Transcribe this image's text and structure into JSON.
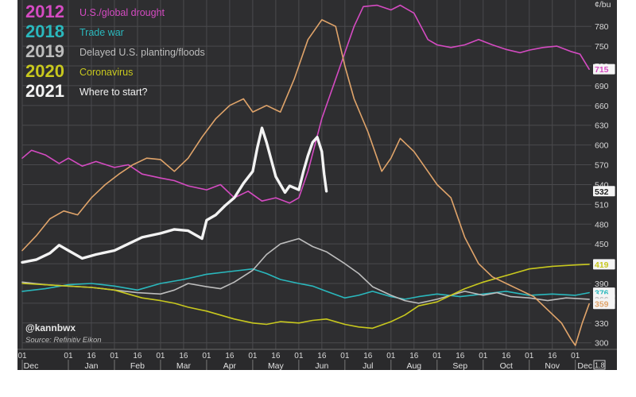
{
  "chart_data": {
    "type": "line",
    "title": "",
    "xlabel": "",
    "ylabel": "",
    "y_unit": "¢/bu",
    "ylim": [
      290,
      820
    ],
    "y_ticks": [
      300,
      330,
      360,
      390,
      420,
      450,
      480,
      510,
      540,
      570,
      600,
      630,
      660,
      690,
      720,
      750,
      780
    ],
    "grid": true,
    "legend_position": "top-left",
    "month_labels": [
      "Dec",
      "Jan",
      "Feb",
      "Mar",
      "Apr",
      "May",
      "Jun",
      "Jul",
      "Aug",
      "Sep",
      "Oct",
      "Nov",
      "Dec"
    ],
    "day_ticks": [
      {
        "m": 0,
        "d": 1
      },
      {
        "m": 1,
        "d": 1
      },
      {
        "m": 1,
        "d": 16
      },
      {
        "m": 2,
        "d": 1
      },
      {
        "m": 2,
        "d": 16
      },
      {
        "m": 3,
        "d": 1
      },
      {
        "m": 3,
        "d": 16
      },
      {
        "m": 4,
        "d": 1
      },
      {
        "m": 4,
        "d": 16
      },
      {
        "m": 5,
        "d": 1
      },
      {
        "m": 5,
        "d": 16
      },
      {
        "m": 6,
        "d": 1
      },
      {
        "m": 6,
        "d": 16
      },
      {
        "m": 7,
        "d": 1
      },
      {
        "m": 7,
        "d": 16
      },
      {
        "m": 8,
        "d": 1
      },
      {
        "m": 8,
        "d": 16
      },
      {
        "m": 9,
        "d": 1
      },
      {
        "m": 9,
        "d": 16
      },
      {
        "m": 10,
        "d": 1
      },
      {
        "m": 10,
        "d": 16
      },
      {
        "m": 11,
        "d": 1
      },
      {
        "m": 11,
        "d": 16
      },
      {
        "m": 12,
        "d": 1
      }
    ],
    "attribution": "@kannbwx",
    "source": "Source: Refinitiv Eikon",
    "corner_value": "1.8",
    "series": [
      {
        "year": "2012",
        "name": "U.S./global drought",
        "color": "#d54bc2",
        "end_label": "715",
        "end_m": 12.3,
        "points": [
          [
            0,
            580
          ],
          [
            0.2,
            592
          ],
          [
            0.5,
            585
          ],
          [
            0.8,
            572
          ],
          [
            1.0,
            580
          ],
          [
            1.3,
            568
          ],
          [
            1.6,
            575
          ],
          [
            2.0,
            566
          ],
          [
            2.3,
            570
          ],
          [
            2.6,
            556
          ],
          [
            3.0,
            550
          ],
          [
            3.3,
            546
          ],
          [
            3.6,
            538
          ],
          [
            4.0,
            532
          ],
          [
            4.3,
            540
          ],
          [
            4.6,
            520
          ],
          [
            4.9,
            530
          ],
          [
            5.2,
            515
          ],
          [
            5.5,
            520
          ],
          [
            5.8,
            512
          ],
          [
            6.0,
            520
          ],
          [
            6.2,
            560
          ],
          [
            6.5,
            640
          ],
          [
            6.8,
            700
          ],
          [
            7.0,
            740
          ],
          [
            7.2,
            780
          ],
          [
            7.4,
            810
          ],
          [
            7.7,
            812
          ],
          [
            8.0,
            805
          ],
          [
            8.2,
            812
          ],
          [
            8.5,
            800
          ],
          [
            8.8,
            760
          ],
          [
            9.0,
            752
          ],
          [
            9.3,
            748
          ],
          [
            9.6,
            752
          ],
          [
            9.9,
            760
          ],
          [
            10.2,
            752
          ],
          [
            10.5,
            745
          ],
          [
            10.8,
            740
          ],
          [
            11.0,
            744
          ],
          [
            11.3,
            748
          ],
          [
            11.6,
            750
          ],
          [
            11.9,
            742
          ],
          [
            12.1,
            738
          ],
          [
            12.3,
            715
          ]
        ]
      },
      {
        "year": "2018",
        "name": "Trade war",
        "color": "#2ab8bd",
        "end_label": "376",
        "end_m": 12.3,
        "points": [
          [
            0,
            378
          ],
          [
            0.5,
            382
          ],
          [
            1.0,
            388
          ],
          [
            1.5,
            390
          ],
          [
            2.0,
            386
          ],
          [
            2.5,
            380
          ],
          [
            3.0,
            390
          ],
          [
            3.5,
            396
          ],
          [
            4.0,
            404
          ],
          [
            4.5,
            408
          ],
          [
            5.0,
            412
          ],
          [
            5.3,
            405
          ],
          [
            5.6,
            396
          ],
          [
            6.0,
            390
          ],
          [
            6.3,
            386
          ],
          [
            6.6,
            378
          ],
          [
            7.0,
            368
          ],
          [
            7.3,
            372
          ],
          [
            7.6,
            378
          ],
          [
            8.0,
            370
          ],
          [
            8.3,
            366
          ],
          [
            8.6,
            370
          ],
          [
            9.0,
            374
          ],
          [
            9.5,
            370
          ],
          [
            10.0,
            374
          ],
          [
            10.5,
            378
          ],
          [
            11.0,
            372
          ],
          [
            11.5,
            374
          ],
          [
            12.0,
            372
          ],
          [
            12.3,
            376
          ]
        ]
      },
      {
        "year": "2019",
        "name": "Delayed U.S. planting/floods",
        "color": "#bdbdbd",
        "end_label": "366",
        "end_m": 12.3,
        "points": [
          [
            0,
            392
          ],
          [
            0.5,
            388
          ],
          [
            1.0,
            386
          ],
          [
            1.5,
            384
          ],
          [
            2.0,
            380
          ],
          [
            2.5,
            376
          ],
          [
            3.0,
            374
          ],
          [
            3.3,
            380
          ],
          [
            3.6,
            390
          ],
          [
            4.0,
            385
          ],
          [
            4.3,
            382
          ],
          [
            4.6,
            392
          ],
          [
            5.0,
            410
          ],
          [
            5.3,
            434
          ],
          [
            5.6,
            450
          ],
          [
            6.0,
            458
          ],
          [
            6.3,
            446
          ],
          [
            6.6,
            438
          ],
          [
            7.0,
            420
          ],
          [
            7.3,
            405
          ],
          [
            7.6,
            385
          ],
          [
            8.0,
            372
          ],
          [
            8.3,
            364
          ],
          [
            8.6,
            360
          ],
          [
            9.0,
            366
          ],
          [
            9.3,
            372
          ],
          [
            9.6,
            378
          ],
          [
            10.0,
            372
          ],
          [
            10.3,
            376
          ],
          [
            10.6,
            370
          ],
          [
            11.0,
            368
          ],
          [
            11.4,
            364
          ],
          [
            11.8,
            368
          ],
          [
            12.3,
            366
          ]
        ]
      },
      {
        "year": "2020",
        "name": "Coronavirus",
        "color": "#c8c81e",
        "end_label": "419",
        "end_m": 12.3,
        "points": [
          [
            0,
            390
          ],
          [
            0.5,
            388
          ],
          [
            1.0,
            386
          ],
          [
            1.5,
            384
          ],
          [
            2.0,
            380
          ],
          [
            2.3,
            374
          ],
          [
            2.6,
            368
          ],
          [
            3.0,
            364
          ],
          [
            3.3,
            360
          ],
          [
            3.6,
            354
          ],
          [
            4.0,
            348
          ],
          [
            4.3,
            342
          ],
          [
            4.6,
            336
          ],
          [
            5.0,
            330
          ],
          [
            5.3,
            328
          ],
          [
            5.6,
            332
          ],
          [
            6.0,
            330
          ],
          [
            6.3,
            334
          ],
          [
            6.6,
            336
          ],
          [
            7.0,
            328
          ],
          [
            7.3,
            324
          ],
          [
            7.6,
            322
          ],
          [
            8.0,
            332
          ],
          [
            8.3,
            342
          ],
          [
            8.6,
            356
          ],
          [
            9.0,
            362
          ],
          [
            9.3,
            372
          ],
          [
            9.6,
            382
          ],
          [
            10.0,
            392
          ],
          [
            10.3,
            398
          ],
          [
            10.6,
            404
          ],
          [
            11.0,
            412
          ],
          [
            11.5,
            416
          ],
          [
            12.0,
            418
          ],
          [
            12.3,
            419
          ]
        ]
      },
      {
        "year": "2021",
        "name": "Where to start?",
        "color": "#f3f3f3",
        "end_label": "532",
        "end_m": 12.3,
        "points": [
          [
            0,
            422
          ],
          [
            0.3,
            426
          ],
          [
            0.6,
            436
          ],
          [
            0.8,
            448
          ],
          [
            1.0,
            440
          ],
          [
            1.3,
            428
          ],
          [
            1.6,
            434
          ],
          [
            2.0,
            440
          ],
          [
            2.3,
            450
          ],
          [
            2.6,
            460
          ],
          [
            3.0,
            466
          ],
          [
            3.3,
            472
          ],
          [
            3.6,
            470
          ],
          [
            3.9,
            458
          ],
          [
            4.0,
            486
          ],
          [
            4.2,
            494
          ],
          [
            4.4,
            508
          ],
          [
            4.6,
            520
          ],
          [
            4.8,
            542
          ],
          [
            5.0,
            560
          ],
          [
            5.1,
            596
          ],
          [
            5.2,
            626
          ],
          [
            5.3,
            604
          ],
          [
            5.4,
            578
          ],
          [
            5.5,
            552
          ],
          [
            5.6,
            540
          ],
          [
            5.7,
            528
          ],
          [
            5.8,
            538
          ],
          [
            6.0,
            532
          ],
          [
            6.1,
            560
          ],
          [
            6.2,
            584
          ],
          [
            6.3,
            604
          ],
          [
            6.4,
            612
          ],
          [
            6.5,
            590
          ],
          [
            6.55,
            556
          ],
          [
            6.6,
            530
          ]
        ]
      },
      {
        "year": "",
        "name": "",
        "color": "#e0a46a",
        "end_label": "359",
        "end_m": 12.3,
        "points": [
          [
            0,
            440
          ],
          [
            0.3,
            462
          ],
          [
            0.6,
            488
          ],
          [
            0.9,
            500
          ],
          [
            1.2,
            494
          ],
          [
            1.5,
            520
          ],
          [
            1.8,
            540
          ],
          [
            2.1,
            556
          ],
          [
            2.4,
            570
          ],
          [
            2.7,
            580
          ],
          [
            3.0,
            578
          ],
          [
            3.3,
            560
          ],
          [
            3.6,
            580
          ],
          [
            3.9,
            612
          ],
          [
            4.2,
            640
          ],
          [
            4.5,
            660
          ],
          [
            4.8,
            670
          ],
          [
            5.0,
            650
          ],
          [
            5.3,
            660
          ],
          [
            5.6,
            650
          ],
          [
            5.9,
            700
          ],
          [
            6.2,
            760
          ],
          [
            6.5,
            790
          ],
          [
            6.8,
            780
          ],
          [
            7.0,
            720
          ],
          [
            7.2,
            670
          ],
          [
            7.5,
            620
          ],
          [
            7.8,
            560
          ],
          [
            8.0,
            580
          ],
          [
            8.2,
            610
          ],
          [
            8.5,
            590
          ],
          [
            8.8,
            560
          ],
          [
            9.0,
            540
          ],
          [
            9.3,
            520
          ],
          [
            9.6,
            460
          ],
          [
            9.9,
            420
          ],
          [
            10.2,
            400
          ],
          [
            10.5,
            390
          ],
          [
            10.8,
            380
          ],
          [
            11.1,
            370
          ],
          [
            11.4,
            350
          ],
          [
            11.7,
            330
          ],
          [
            11.9,
            306
          ],
          [
            12.0,
            296
          ],
          [
            12.15,
            330
          ],
          [
            12.3,
            359
          ]
        ]
      }
    ]
  }
}
